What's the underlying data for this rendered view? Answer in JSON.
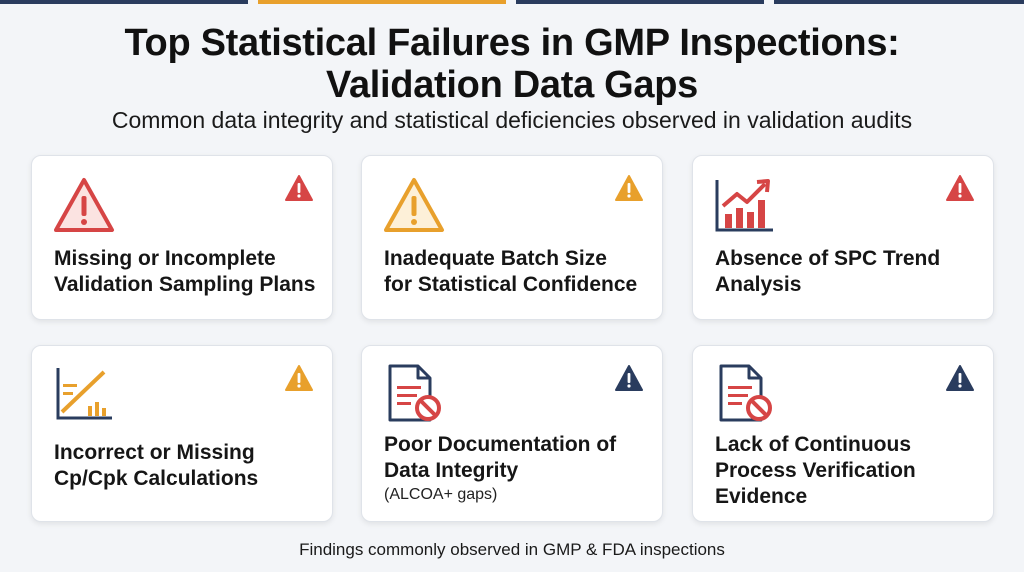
{
  "title": {
    "line1": "Top Statistical Failures in GMP Inspections:",
    "line2": "Validation Data Gaps"
  },
  "subtitle": "Common data integrity and statistical deficiencies observed in validation audits",
  "cards": [
    {
      "line1": "Missing or Incomplete",
      "line2": "Validation Sampling Plans",
      "icon": "warning-triangle-icon",
      "severity": "high"
    },
    {
      "line1": "Inadequate Batch Size",
      "line2": "for Statistical Confidence",
      "icon": "warning-triangle-icon",
      "severity": "medium"
    },
    {
      "line1": "Absence of SPC Trend",
      "line2": "Analysis",
      "icon": "trend-chart-icon",
      "severity": "high"
    },
    {
      "line1": "Incorrect or Missing",
      "line2": "Cp/Cpk Calculations",
      "icon": "capability-chart-icon",
      "severity": "medium"
    },
    {
      "line1": "Poor Documentation of",
      "line2": "Data Integrity",
      "sub": "(ALCOA+ gaps)",
      "icon": "document-blocked-icon",
      "severity": "info"
    },
    {
      "line1": "Lack of Continuous",
      "line2": "Process Verification",
      "line3": "Evidence",
      "icon": "document-blocked-icon",
      "severity": "info"
    }
  ],
  "footer": "Findings commonly observed in GMP & FDA inspections",
  "colors": {
    "red": "#d64545",
    "orange": "#e8a02c",
    "navy": "#2a3c5e",
    "background": "#f3f5f8",
    "topbar": [
      "#2a3c5e",
      "#e8a02c",
      "#2a3c5e",
      "#2a3c5e"
    ]
  }
}
